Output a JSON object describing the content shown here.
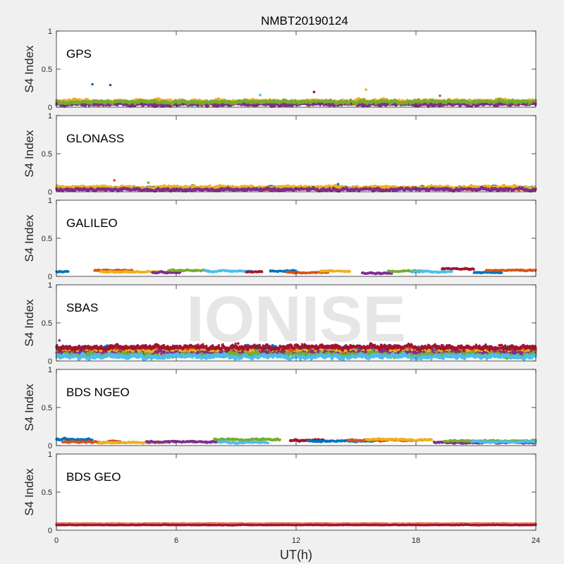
{
  "figure": {
    "background": "#f0f0f0",
    "axes_background": "#ffffff",
    "watermark": "IONISE"
  },
  "chart_data": {
    "type": "scatter",
    "title": "NMBT20190124",
    "xlabel": "UT(h)",
    "ylabel": "S4 Index",
    "xlim": [
      0,
      24
    ],
    "ylim": [
      0,
      1
    ],
    "xticks": [
      0,
      6,
      12,
      18,
      24
    ],
    "yticks": [
      0,
      0.5,
      1
    ],
    "ytick_labels": [
      "0",
      "0.5",
      "1"
    ],
    "series_colors": [
      "#0072bd",
      "#d95319",
      "#edb120",
      "#7e2f8e",
      "#77ac30",
      "#4dbeee",
      "#a2142f"
    ],
    "panels": [
      {
        "name": "GPS",
        "base": 0.06,
        "spread": 0.03,
        "segments": [
          {
            "x0": 0,
            "x1": 24,
            "level": 0.06
          },
          {
            "x0": 0,
            "x1": 24,
            "level": 0.05
          },
          {
            "x0": 0,
            "x1": 24,
            "level": 0.08
          },
          {
            "x0": 0,
            "x1": 24,
            "level": 0.04
          },
          {
            "x0": 0,
            "x1": 24,
            "level": 0.07
          }
        ],
        "outliers": [
          {
            "x": 1.8,
            "y": 0.3
          },
          {
            "x": 2.7,
            "y": 0.29
          },
          {
            "x": 12.9,
            "y": 0.2
          },
          {
            "x": 15.5,
            "y": 0.23
          },
          {
            "x": 10.2,
            "y": 0.16
          },
          {
            "x": 19.2,
            "y": 0.15
          }
        ]
      },
      {
        "name": "GLONASS",
        "base": 0.05,
        "spread": 0.025,
        "segments": [
          {
            "x0": 0,
            "x1": 24,
            "level": 0.05
          },
          {
            "x0": 0,
            "x1": 24,
            "level": 0.04
          },
          {
            "x0": 0,
            "x1": 24,
            "level": 0.06
          },
          {
            "x0": 0,
            "x1": 24,
            "level": 0.03
          }
        ],
        "outliers": [
          {
            "x": 2.9,
            "y": 0.15
          },
          {
            "x": 4.6,
            "y": 0.12
          },
          {
            "x": 14.1,
            "y": 0.1
          }
        ]
      },
      {
        "name": "GALILEO",
        "base": 0.06,
        "spread": 0.012,
        "segments": [
          {
            "x0": 0,
            "x1": 0.6,
            "level": 0.06
          },
          {
            "x0": 1.9,
            "x1": 3.8,
            "level": 0.08
          },
          {
            "x0": 2.2,
            "x1": 5.2,
            "level": 0.06
          },
          {
            "x0": 4.8,
            "x1": 6.2,
            "level": 0.05
          },
          {
            "x0": 5.6,
            "x1": 7.6,
            "level": 0.08
          },
          {
            "x0": 7.4,
            "x1": 9.8,
            "level": 0.07
          },
          {
            "x0": 9.5,
            "x1": 10.3,
            "level": 0.06
          },
          {
            "x0": 10.7,
            "x1": 12.0,
            "level": 0.07
          },
          {
            "x0": 11.5,
            "x1": 13.6,
            "level": 0.05
          },
          {
            "x0": 13.2,
            "x1": 14.7,
            "level": 0.07
          },
          {
            "x0": 15.3,
            "x1": 16.8,
            "level": 0.04
          },
          {
            "x0": 16.6,
            "x1": 18.4,
            "level": 0.07
          },
          {
            "x0": 17.8,
            "x1": 19.8,
            "level": 0.06
          },
          {
            "x0": 19.3,
            "x1": 20.9,
            "level": 0.1
          },
          {
            "x0": 20.9,
            "x1": 22.3,
            "level": 0.05
          },
          {
            "x0": 21.5,
            "x1": 24,
            "level": 0.08
          }
        ],
        "outliers": []
      },
      {
        "name": "SBAS",
        "base": 0.13,
        "spread": 0.04,
        "segments": [
          {
            "x0": 0,
            "x1": 24,
            "level": 0.16
          },
          {
            "x0": 0,
            "x1": 24,
            "level": 0.14
          },
          {
            "x0": 0,
            "x1": 24,
            "level": 0.12
          },
          {
            "x0": 0,
            "x1": 24,
            "level": 0.1
          },
          {
            "x0": 0,
            "x1": 24,
            "level": 0.08
          },
          {
            "x0": 0,
            "x1": 24,
            "level": 0.06
          },
          {
            "x0": 0,
            "x1": 24,
            "level": 0.18
          }
        ],
        "outliers": [
          {
            "x": 0.15,
            "y": 0.27
          },
          {
            "x": 9.1,
            "y": 0.23
          }
        ]
      },
      {
        "name": "BDS NGEO",
        "base": 0.05,
        "spread": 0.015,
        "segments": [
          {
            "x0": 0,
            "x1": 1.8,
            "level": 0.08
          },
          {
            "x0": 0.3,
            "x1": 3.2,
            "level": 0.05
          },
          {
            "x0": 2.1,
            "x1": 5.6,
            "level": 0.04
          },
          {
            "x0": 4.5,
            "x1": 8.2,
            "level": 0.05
          },
          {
            "x0": 7.9,
            "x1": 11.2,
            "level": 0.08
          },
          {
            "x0": 8.1,
            "x1": 10.6,
            "level": 0.04
          },
          {
            "x0": 11.7,
            "x1": 13.4,
            "level": 0.07
          },
          {
            "x0": 12.6,
            "x1": 15.9,
            "level": 0.06
          },
          {
            "x0": 14.6,
            "x1": 17.8,
            "level": 0.07
          },
          {
            "x0": 15.5,
            "x1": 18.8,
            "level": 0.08
          },
          {
            "x0": 18.9,
            "x1": 24,
            "level": 0.04
          },
          {
            "x0": 19.4,
            "x1": 24,
            "level": 0.06
          },
          {
            "x0": 20.8,
            "x1": 24,
            "level": 0.05
          }
        ],
        "outliers": []
      },
      {
        "name": "BDS GEO",
        "base": 0.075,
        "spread": 0.004,
        "segments": [
          {
            "x0": 0,
            "x1": 24,
            "level": 0.085
          },
          {
            "x0": 0,
            "x1": 24,
            "level": 0.075
          },
          {
            "x0": 0,
            "x1": 24,
            "level": 0.068
          }
        ],
        "segment_colors": [
          "#d95319",
          "#edb120",
          "#a2142f"
        ],
        "outliers": []
      }
    ]
  }
}
